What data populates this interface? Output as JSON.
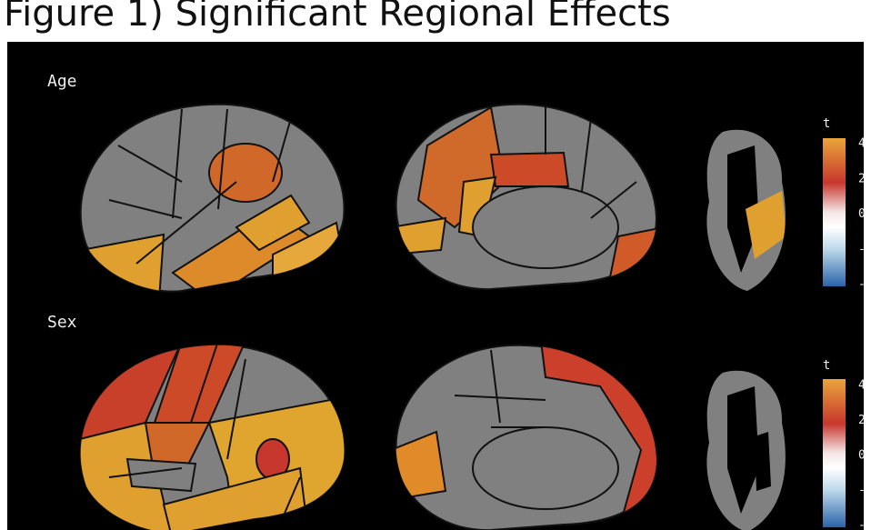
{
  "title": "Figure 1) Significant Regional Effects",
  "panels": [
    {
      "label": "Age",
      "colorbar": {
        "title": "t",
        "ticks": [
          "4",
          "2",
          "0",
          "-",
          "-"
        ]
      }
    },
    {
      "label": "Sex",
      "colorbar": {
        "title": "t",
        "ticks": [
          "4",
          "2",
          "0",
          "-",
          "-"
        ]
      }
    }
  ]
}
